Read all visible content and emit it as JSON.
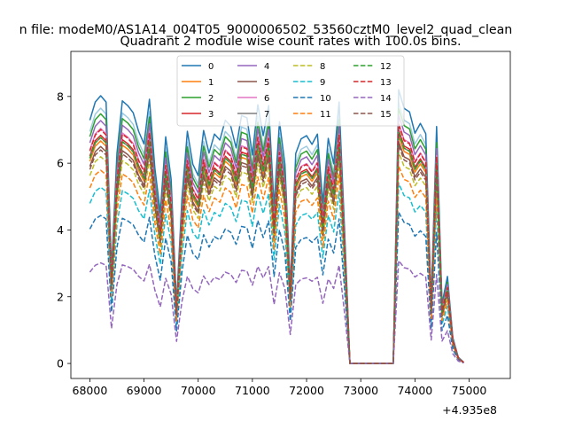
{
  "page": {
    "suptitle": "n file: modeM0/AS1A14_004T05_9000006502_53560cztM0_level2_quad_clean",
    "title": "Quadrant 2 module wise count rates with 100.0s bins.",
    "offset_text": "+4.935e8"
  },
  "chart_data": {
    "type": "line",
    "title": "Quadrant 2 module wise count rates with 100.0s bins.",
    "xlabel": "",
    "ylabel": "",
    "x_offset": 493500000,
    "xlim": [
      67650,
      75760
    ],
    "ylim": [
      -0.45,
      9.35
    ],
    "xticks": [
      68000,
      69000,
      70000,
      71000,
      72000,
      73000,
      74000,
      75000
    ],
    "xtick_labels": [
      "68000",
      "69000",
      "70000",
      "71000",
      "72000",
      "73000",
      "74000",
      "75000"
    ],
    "yticks": [
      0,
      2,
      4,
      6,
      8
    ],
    "ytick_labels": [
      "0",
      "2",
      "4",
      "6",
      "8"
    ],
    "grid": false,
    "legend_position": "top-center",
    "x_start": 68000,
    "x_step": 100,
    "base_profile": [
      6.15,
      6.61,
      6.77,
      6.61,
      2.36,
      5.31,
      6.64,
      6.52,
      6.34,
      5.87,
      5.55,
      6.68,
      4.94,
      3.81,
      5.73,
      4.66,
      1.49,
      4.17,
      5.87,
      5.04,
      4.75,
      5.89,
      5.32,
      5.8,
      5.65,
      6.15,
      6.0,
      5.45,
      6.27,
      6.21,
      5.27,
      6.54,
      5.76,
      6.52,
      3.98,
      6.11,
      5.04,
      1.95,
      5.31,
      5.68,
      5.76,
      5.54,
      5.8,
      4.05,
      5.69,
      5.05,
      6.61,
      3.43,
      0.0,
      0.0,
      0.0,
      0.0,
      0.0,
      0.0,
      0.0,
      0.0,
      0.0,
      6.92,
      6.45,
      6.36,
      5.82,
      6.07,
      5.81,
      1.58,
      5.99,
      1.51,
      2.2,
      0.65,
      0.16,
      0.03
    ],
    "series": [
      {
        "name": "0",
        "style": "solid",
        "color": "#1f77b4",
        "scale": 1.185
      },
      {
        "name": "1",
        "style": "solid",
        "color": "#ff7f0e",
        "scale": 0.985
      },
      {
        "name": "2",
        "style": "solid",
        "color": "#2ca02c",
        "scale": 1.105
      },
      {
        "name": "3",
        "style": "solid",
        "color": "#d62728",
        "scale": 1.01
      },
      {
        "name": "4",
        "style": "solid",
        "color": "#9467bd",
        "scale": 1.075
      },
      {
        "name": "5",
        "style": "solid",
        "color": "#8c564b",
        "scale": 0.96
      },
      {
        "name": "6",
        "style": "solid",
        "color": "#e377c2",
        "scale": 1.04
      },
      {
        "name": "7",
        "style": "solid",
        "color": "#7f7f7f",
        "scale": 1.0
      },
      {
        "name": "8",
        "style": "dashed",
        "color": "#bcbd22",
        "scale": 0.915
      },
      {
        "name": "9",
        "style": "dashed",
        "color": "#17becf",
        "scale": 0.78
      },
      {
        "name": "10",
        "style": "dashed",
        "color": "#1f77b4",
        "scale": 0.655
      },
      {
        "name": "11",
        "style": "dashed",
        "color": "#ff7f0e",
        "scale": 0.855
      },
      {
        "name": "12",
        "style": "dashed",
        "color": "#2ca02c",
        "scale": 1.0
      },
      {
        "name": "13",
        "style": "dashed",
        "color": "#d62728",
        "scale": 1.035
      },
      {
        "name": "14",
        "style": "dashed",
        "color": "#9467bd",
        "scale": 0.445
      },
      {
        "name": "15",
        "style": "dashed",
        "color": "#8c564b",
        "scale": 0.945
      }
    ],
    "extra_series": {
      "name": "(unlabeled)",
      "style": "solid",
      "color": "#9ecae1",
      "scale": 1.13
    }
  }
}
